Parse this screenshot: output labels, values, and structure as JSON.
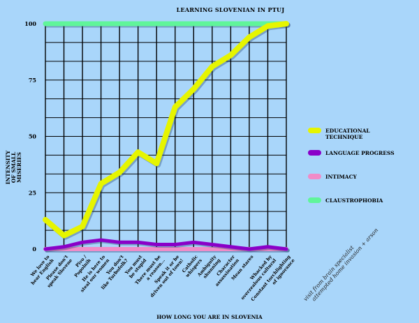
{
  "chart_data": {
    "type": "line",
    "title": "LEARNING SLOVENIAN IN PTUJ",
    "xlabel": "HOW LONG YOU ARE IN SLOVENIA",
    "ylabel_lines": [
      "INTENSITY",
      "OF SMALL",
      "MISERIES"
    ],
    "ylim": [
      0,
      100
    ],
    "yticks": [
      0,
      25,
      50,
      75,
      100
    ],
    "grid": true,
    "legend_position": "right",
    "categories": [
      "We love to hear English",
      "Please don't speak Slovene",
      "Pivo / Popolnih",
      "He is here to steal our women",
      "You don't like Turbofolk?",
      "You must be stupid",
      "There must be a reason...",
      "Speak it or be driven out of town!",
      "Catholic whispers",
      "Ambiguity shunning",
      "Character assassination",
      "Mean stares",
      "Whacked by overzealous cultural",
      "Constant torchlighting of ignorance"
    ],
    "series": [
      {
        "name": "EDUCATIONAL TECHNIQUE",
        "color": "#e6f500",
        "values": [
          13,
          6,
          10,
          29,
          34,
          43,
          38,
          63,
          71,
          81,
          86,
          94,
          99,
          100
        ]
      },
      {
        "name": "LANGUAGE PROGRESS",
        "color": "#8a00c8",
        "values": [
          0,
          1,
          3,
          4,
          3,
          3,
          2,
          2,
          3,
          2,
          1,
          0,
          1,
          0
        ]
      },
      {
        "name": "INTIMACY",
        "color": "#f08cc8",
        "values": [
          0,
          0,
          0,
          0,
          0,
          0,
          0,
          0,
          0,
          0,
          0,
          0,
          0,
          0
        ]
      },
      {
        "name": "CLAUSTROPHOBIA",
        "color": "#60f59a",
        "values": [
          100,
          100,
          100,
          100,
          100,
          100,
          100,
          100,
          100,
          100,
          100,
          100,
          100,
          100
        ]
      }
    ],
    "annotations": [
      "visit from brain specialist",
      "attempted home invasion + arson"
    ]
  }
}
